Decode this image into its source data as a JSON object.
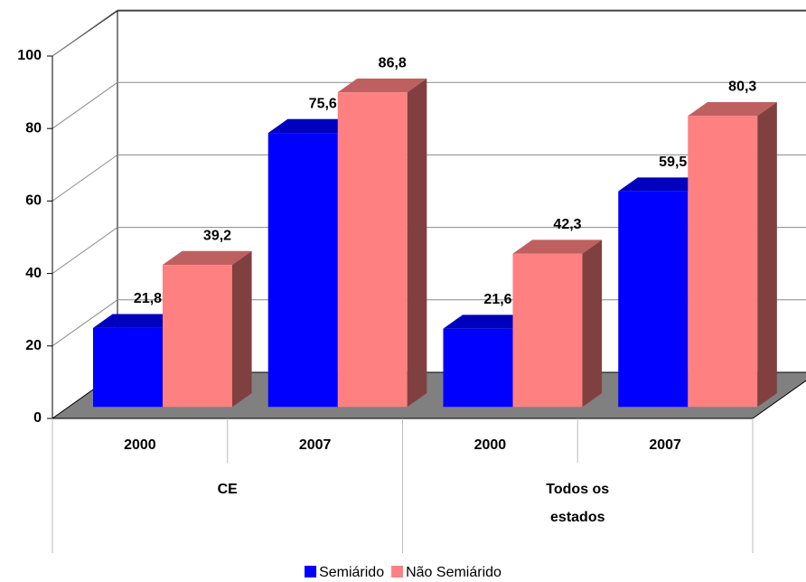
{
  "chart_data": {
    "type": "bar3d",
    "categories": [
      "2000",
      "2007",
      "2000",
      "2007"
    ],
    "category_groups": [
      "CE",
      "Todos os estados"
    ],
    "series": [
      {
        "name": "Semiárido",
        "color": "#0000ff",
        "values": [
          21.8,
          75.6,
          21.6,
          59.5
        ],
        "value_labels": [
          "21,8",
          "75,6",
          "21,6",
          "59,5"
        ]
      },
      {
        "name": "Não Semiárido",
        "color": "#ff8080",
        "values": [
          39.2,
          86.8,
          42.3,
          80.3
        ],
        "value_labels": [
          "39,2",
          "86,8",
          "42,3",
          "80,3"
        ]
      }
    ],
    "ylim": [
      0,
      100
    ],
    "yticks": [
      0,
      20,
      40,
      60,
      80,
      100
    ],
    "grid": true,
    "legend": "bottom"
  }
}
